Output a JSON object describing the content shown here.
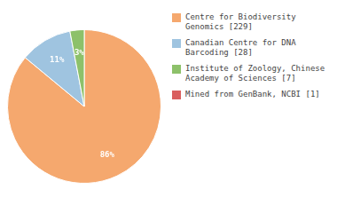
{
  "chart_data": {
    "type": "pie",
    "categories": [
      "Centre for Biodiversity\nGenomics [229]",
      "Canadian Centre for DNA\nBarcoding [28]",
      "Institute of Zoology, Chinese\nAcademy of Sciences [7]",
      "Mined from GenBank, NCBI [1]"
    ],
    "values": [
      86,
      11,
      3,
      0
    ],
    "value_labels": [
      "86%",
      "11%",
      "3%",
      null
    ],
    "colors": [
      "#F5A86E",
      "#9FC4E0",
      "#8DC16A",
      "#D95F5F"
    ],
    "data_labels": true,
    "legend": "right"
  }
}
